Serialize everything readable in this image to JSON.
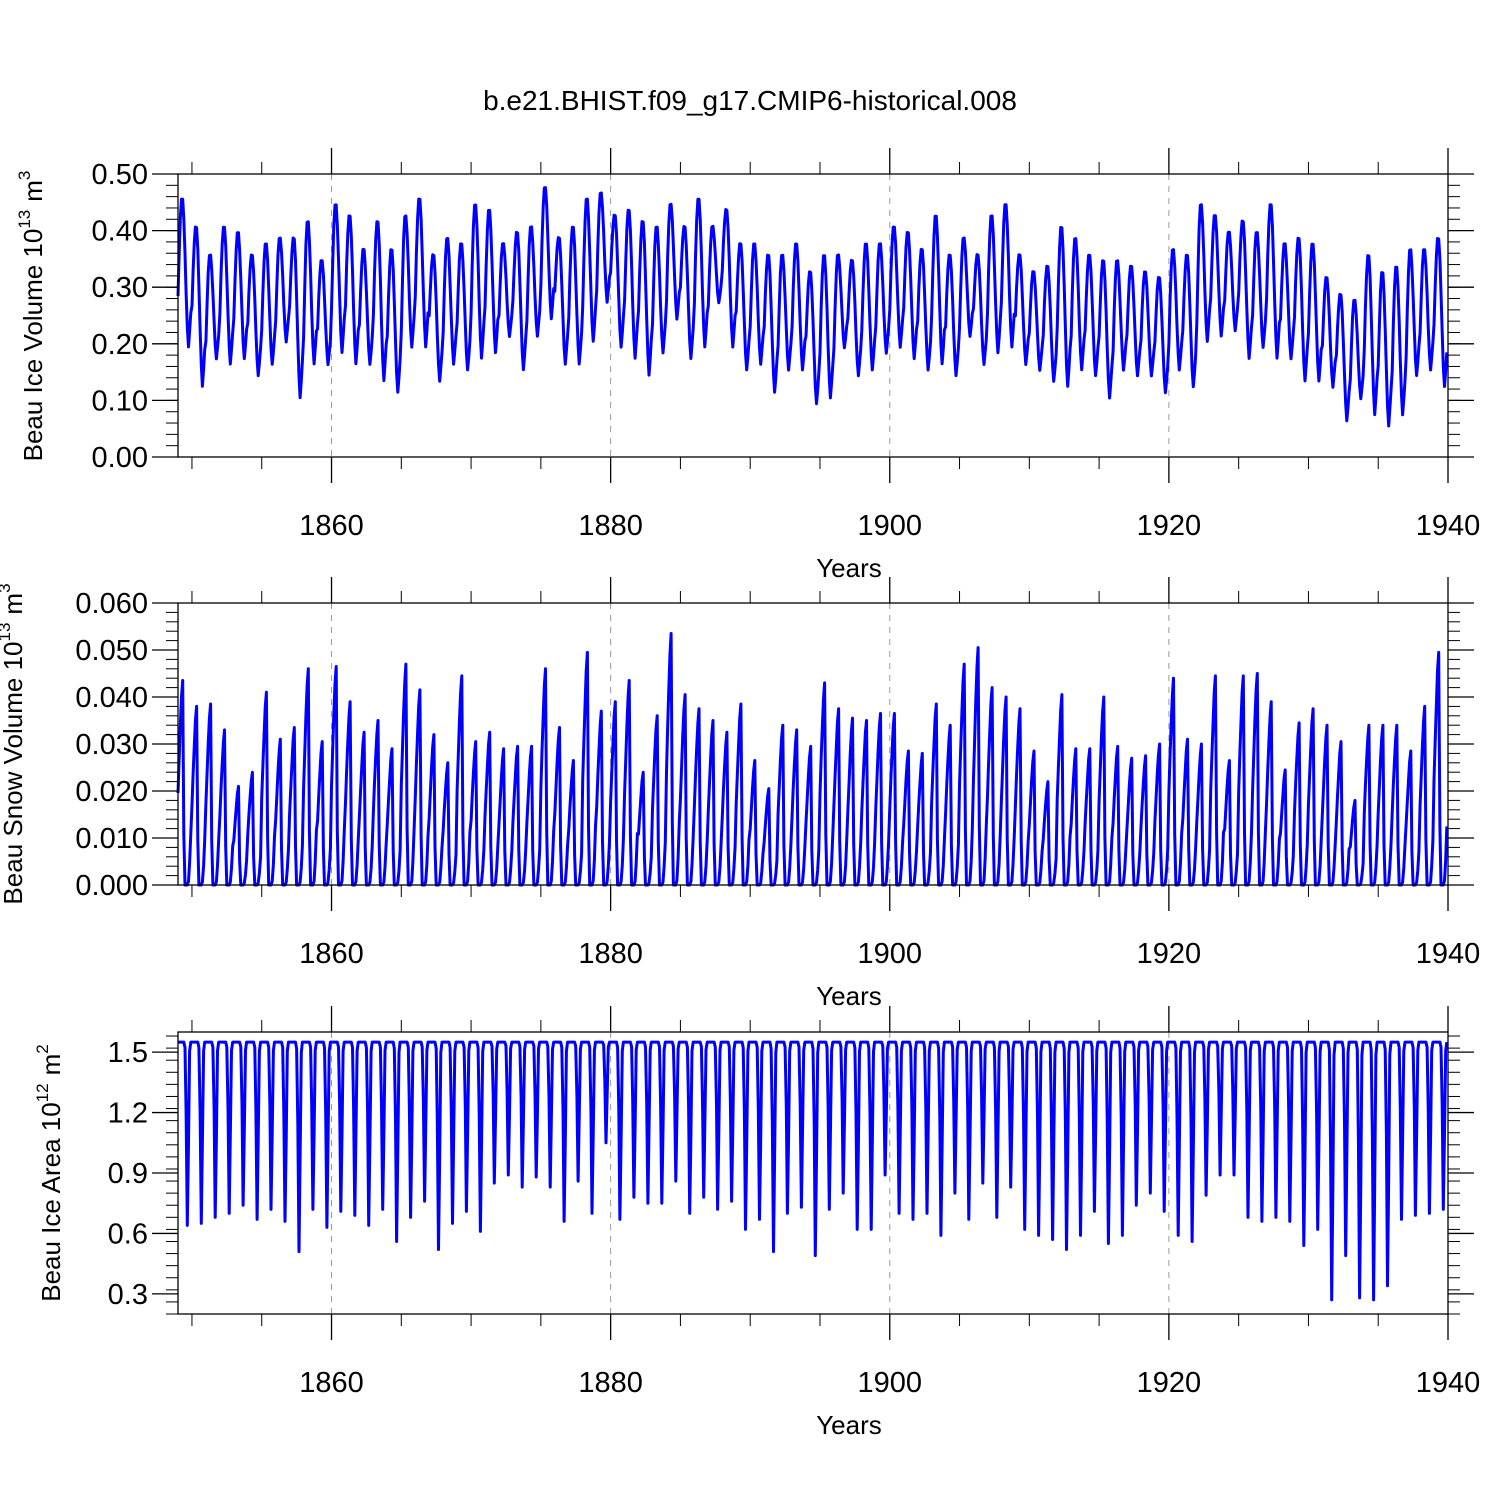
{
  "title": "b.e21.BHIST.f09_g17.CMIP6-historical.008",
  "colors": {
    "series": "#0000ff",
    "axis": "#000000",
    "grid": "#999999"
  },
  "chart_data": [
    {
      "type": "line",
      "id": "ice-volume",
      "title": "b.e21.BHIST.f09_g17.CMIP6-historical.008",
      "xlabel": "Years",
      "ylabel_text": "Beau Ice Volume 10",
      "ylabel_exp": "13",
      "ylabel_unit": "m",
      "ylabel_unit_exp": "3",
      "xlim": [
        1849,
        1940
      ],
      "ylim": [
        0.0,
        0.5
      ],
      "x_ticks": [
        1860,
        1880,
        1900,
        1920,
        1940
      ],
      "x_tick_labels": [
        "1860",
        "1880",
        "1900",
        "1920",
        "1940"
      ],
      "y_ticks": [
        0.0,
        0.1,
        0.2,
        0.3,
        0.4,
        0.5
      ],
      "y_tick_labels": [
        "0.00",
        "0.10",
        "0.20",
        "0.30",
        "0.40",
        "0.50"
      ],
      "grid": "dashed vertical at major x ticks",
      "series": [
        {
          "name": "Beau Ice Volume",
          "sampling": "monthly, Jan 1849 - Dec 1939; max around month 4, min around month 10",
          "years": [
            1849,
            1850,
            1851,
            1852,
            1853,
            1854,
            1855,
            1856,
            1857,
            1858,
            1859,
            1860,
            1861,
            1862,
            1863,
            1864,
            1865,
            1866,
            1867,
            1868,
            1869,
            1870,
            1871,
            1872,
            1873,
            1874,
            1875,
            1876,
            1877,
            1878,
            1879,
            1880,
            1881,
            1882,
            1883,
            1884,
            1885,
            1886,
            1887,
            1888,
            1889,
            1890,
            1891,
            1892,
            1893,
            1894,
            1895,
            1896,
            1897,
            1898,
            1899,
            1900,
            1901,
            1902,
            1903,
            1904,
            1905,
            1906,
            1907,
            1908,
            1909,
            1910,
            1911,
            1912,
            1913,
            1914,
            1915,
            1916,
            1917,
            1918,
            1919,
            1920,
            1921,
            1922,
            1923,
            1924,
            1925,
            1926,
            1927,
            1928,
            1929,
            1930,
            1931,
            1932,
            1933,
            1934,
            1935,
            1936,
            1937,
            1938,
            1939
          ],
          "annual_max": [
            0.46,
            0.41,
            0.36,
            0.41,
            0.4,
            0.36,
            0.38,
            0.39,
            0.39,
            0.42,
            0.35,
            0.45,
            0.43,
            0.37,
            0.42,
            0.37,
            0.43,
            0.46,
            0.36,
            0.39,
            0.38,
            0.45,
            0.44,
            0.38,
            0.4,
            0.41,
            0.48,
            0.39,
            0.41,
            0.46,
            0.47,
            0.43,
            0.44,
            0.42,
            0.41,
            0.45,
            0.41,
            0.46,
            0.41,
            0.44,
            0.38,
            0.38,
            0.36,
            0.36,
            0.38,
            0.33,
            0.36,
            0.36,
            0.35,
            0.38,
            0.38,
            0.41,
            0.4,
            0.37,
            0.43,
            0.36,
            0.39,
            0.36,
            0.43,
            0.45,
            0.36,
            0.33,
            0.34,
            0.41,
            0.39,
            0.36,
            0.35,
            0.35,
            0.34,
            0.33,
            0.32,
            0.37,
            0.36,
            0.45,
            0.43,
            0.4,
            0.42,
            0.4,
            0.45,
            0.38,
            0.39,
            0.38,
            0.32,
            0.29,
            0.28,
            0.36,
            0.33,
            0.34,
            0.37,
            0.37,
            0.39
          ],
          "annual_min": [
            0.19,
            0.12,
            0.17,
            0.16,
            0.17,
            0.14,
            0.16,
            0.2,
            0.1,
            0.16,
            0.16,
            0.18,
            0.16,
            0.16,
            0.13,
            0.11,
            0.19,
            0.19,
            0.13,
            0.16,
            0.15,
            0.17,
            0.18,
            0.21,
            0.15,
            0.21,
            0.24,
            0.16,
            0.16,
            0.2,
            0.27,
            0.19,
            0.17,
            0.14,
            0.18,
            0.24,
            0.17,
            0.19,
            0.27,
            0.19,
            0.15,
            0.16,
            0.11,
            0.15,
            0.15,
            0.09,
            0.1,
            0.19,
            0.14,
            0.15,
            0.18,
            0.19,
            0.17,
            0.15,
            0.16,
            0.14,
            0.21,
            0.16,
            0.18,
            0.19,
            0.16,
            0.15,
            0.13,
            0.12,
            0.15,
            0.14,
            0.1,
            0.15,
            0.14,
            0.14,
            0.11,
            0.15,
            0.12,
            0.2,
            0.21,
            0.22,
            0.17,
            0.19,
            0.17,
            0.17,
            0.13,
            0.13,
            0.12,
            0.06,
            0.1,
            0.07,
            0.05,
            0.07,
            0.14,
            0.15,
            0.12
          ]
        }
      ]
    },
    {
      "type": "line",
      "id": "snow-volume",
      "xlabel": "Years",
      "ylabel_text": "Beau Snow Volume 10",
      "ylabel_exp": "13",
      "ylabel_unit": "m",
      "ylabel_unit_exp": "3",
      "xlim": [
        1849,
        1940
      ],
      "ylim": [
        0.0,
        0.06
      ],
      "x_ticks": [
        1860,
        1880,
        1900,
        1920,
        1940
      ],
      "x_tick_labels": [
        "1860",
        "1880",
        "1900",
        "1920",
        "1940"
      ],
      "y_ticks": [
        0.0,
        0.01,
        0.02,
        0.03,
        0.04,
        0.05,
        0.06
      ],
      "y_tick_labels": [
        "0.000",
        "0.010",
        "0.020",
        "0.030",
        "0.040",
        "0.050",
        "0.060"
      ],
      "grid": "dashed vertical at major x ticks",
      "series": [
        {
          "name": "Beau Snow Volume",
          "sampling": "monthly; near 0 in summer, peak around month 5",
          "years": [
            1849,
            1850,
            1851,
            1852,
            1853,
            1854,
            1855,
            1856,
            1857,
            1858,
            1859,
            1860,
            1861,
            1862,
            1863,
            1864,
            1865,
            1866,
            1867,
            1868,
            1869,
            1870,
            1871,
            1872,
            1873,
            1874,
            1875,
            1876,
            1877,
            1878,
            1879,
            1880,
            1881,
            1882,
            1883,
            1884,
            1885,
            1886,
            1887,
            1888,
            1889,
            1890,
            1891,
            1892,
            1893,
            1894,
            1895,
            1896,
            1897,
            1898,
            1899,
            1900,
            1901,
            1902,
            1903,
            1904,
            1905,
            1906,
            1907,
            1908,
            1909,
            1910,
            1911,
            1912,
            1913,
            1914,
            1915,
            1916,
            1917,
            1918,
            1919,
            1920,
            1921,
            1922,
            1923,
            1924,
            1925,
            1926,
            1927,
            1928,
            1929,
            1930,
            1931,
            1932,
            1933,
            1934,
            1935,
            1936,
            1937,
            1938,
            1939
          ],
          "annual_max": [
            0.0435,
            0.038,
            0.0385,
            0.033,
            0.021,
            0.024,
            0.041,
            0.031,
            0.0335,
            0.046,
            0.0305,
            0.0465,
            0.039,
            0.0325,
            0.035,
            0.029,
            0.047,
            0.0415,
            0.032,
            0.026,
            0.0445,
            0.0305,
            0.0325,
            0.029,
            0.0295,
            0.0295,
            0.046,
            0.0335,
            0.0265,
            0.0495,
            0.037,
            0.039,
            0.0435,
            0.024,
            0.036,
            0.0535,
            0.0405,
            0.0375,
            0.035,
            0.0325,
            0.0385,
            0.0265,
            0.0205,
            0.034,
            0.033,
            0.0295,
            0.043,
            0.0375,
            0.0355,
            0.035,
            0.0365,
            0.0365,
            0.0285,
            0.028,
            0.0385,
            0.034,
            0.047,
            0.0505,
            0.042,
            0.04,
            0.0375,
            0.0285,
            0.022,
            0.0405,
            0.029,
            0.029,
            0.04,
            0.0295,
            0.027,
            0.0275,
            0.03,
            0.044,
            0.031,
            0.03,
            0.0445,
            0.0265,
            0.0445,
            0.045,
            0.039,
            0.0245,
            0.0345,
            0.0375,
            0.034,
            0.0305,
            0.018,
            0.034,
            0.034,
            0.034,
            0.0285,
            0.038,
            0.0495
          ]
        }
      ]
    },
    {
      "type": "line",
      "id": "ice-area",
      "xlabel": "Years",
      "ylabel_text": "Beau Ice Area 10",
      "ylabel_exp": "12",
      "ylabel_unit": "m",
      "ylabel_unit_exp": "2",
      "xlim": [
        1849,
        1940
      ],
      "ylim": [
        0.2,
        1.6
      ],
      "x_ticks": [
        1860,
        1880,
        1900,
        1920,
        1940
      ],
      "x_tick_labels": [
        "1860",
        "1880",
        "1900",
        "1920",
        "1940"
      ],
      "y_ticks": [
        0.3,
        0.6,
        0.9,
        1.2,
        1.5
      ],
      "y_tick_labels": [
        "0.3",
        "0.6",
        "0.9",
        "1.2",
        "1.5"
      ],
      "grid": "dashed vertical at major x ticks",
      "series": [
        {
          "name": "Beau Ice Area",
          "sampling": "monthly; plateau at max most of the year, min around month 9",
          "plateau": 1.55,
          "years": [
            1849,
            1850,
            1851,
            1852,
            1853,
            1854,
            1855,
            1856,
            1857,
            1858,
            1859,
            1860,
            1861,
            1862,
            1863,
            1864,
            1865,
            1866,
            1867,
            1868,
            1869,
            1870,
            1871,
            1872,
            1873,
            1874,
            1875,
            1876,
            1877,
            1878,
            1879,
            1880,
            1881,
            1882,
            1883,
            1884,
            1885,
            1886,
            1887,
            1888,
            1889,
            1890,
            1891,
            1892,
            1893,
            1894,
            1895,
            1896,
            1897,
            1898,
            1899,
            1900,
            1901,
            1902,
            1903,
            1904,
            1905,
            1906,
            1907,
            1908,
            1909,
            1910,
            1911,
            1912,
            1913,
            1914,
            1915,
            1916,
            1917,
            1918,
            1919,
            1920,
            1921,
            1922,
            1923,
            1924,
            1925,
            1926,
            1927,
            1928,
            1929,
            1930,
            1931,
            1932,
            1933,
            1934,
            1935,
            1936,
            1937,
            1938,
            1939
          ],
          "annual_min": [
            0.64,
            0.65,
            0.68,
            0.7,
            0.74,
            0.67,
            0.72,
            0.66,
            0.51,
            0.72,
            0.63,
            0.71,
            0.69,
            0.64,
            0.72,
            0.56,
            0.68,
            0.76,
            0.52,
            0.65,
            0.71,
            0.61,
            0.85,
            0.89,
            0.83,
            0.88,
            0.83,
            0.66,
            0.86,
            0.7,
            1.05,
            0.67,
            0.78,
            0.75,
            0.75,
            0.86,
            0.7,
            0.78,
            0.72,
            0.76,
            0.62,
            0.67,
            0.51,
            0.7,
            0.73,
            0.49,
            0.72,
            0.8,
            0.62,
            0.62,
            0.89,
            0.7,
            0.67,
            0.7,
            0.59,
            0.8,
            0.67,
            0.85,
            0.68,
            0.83,
            0.62,
            0.59,
            0.57,
            0.52,
            0.59,
            0.71,
            0.55,
            0.59,
            0.74,
            0.8,
            0.71,
            0.59,
            0.56,
            0.79,
            0.89,
            0.89,
            0.68,
            0.66,
            0.68,
            0.66,
            0.54,
            0.62,
            0.27,
            0.49,
            0.28,
            0.27,
            0.34,
            0.67,
            0.69,
            0.7,
            0.72
          ]
        }
      ]
    }
  ]
}
